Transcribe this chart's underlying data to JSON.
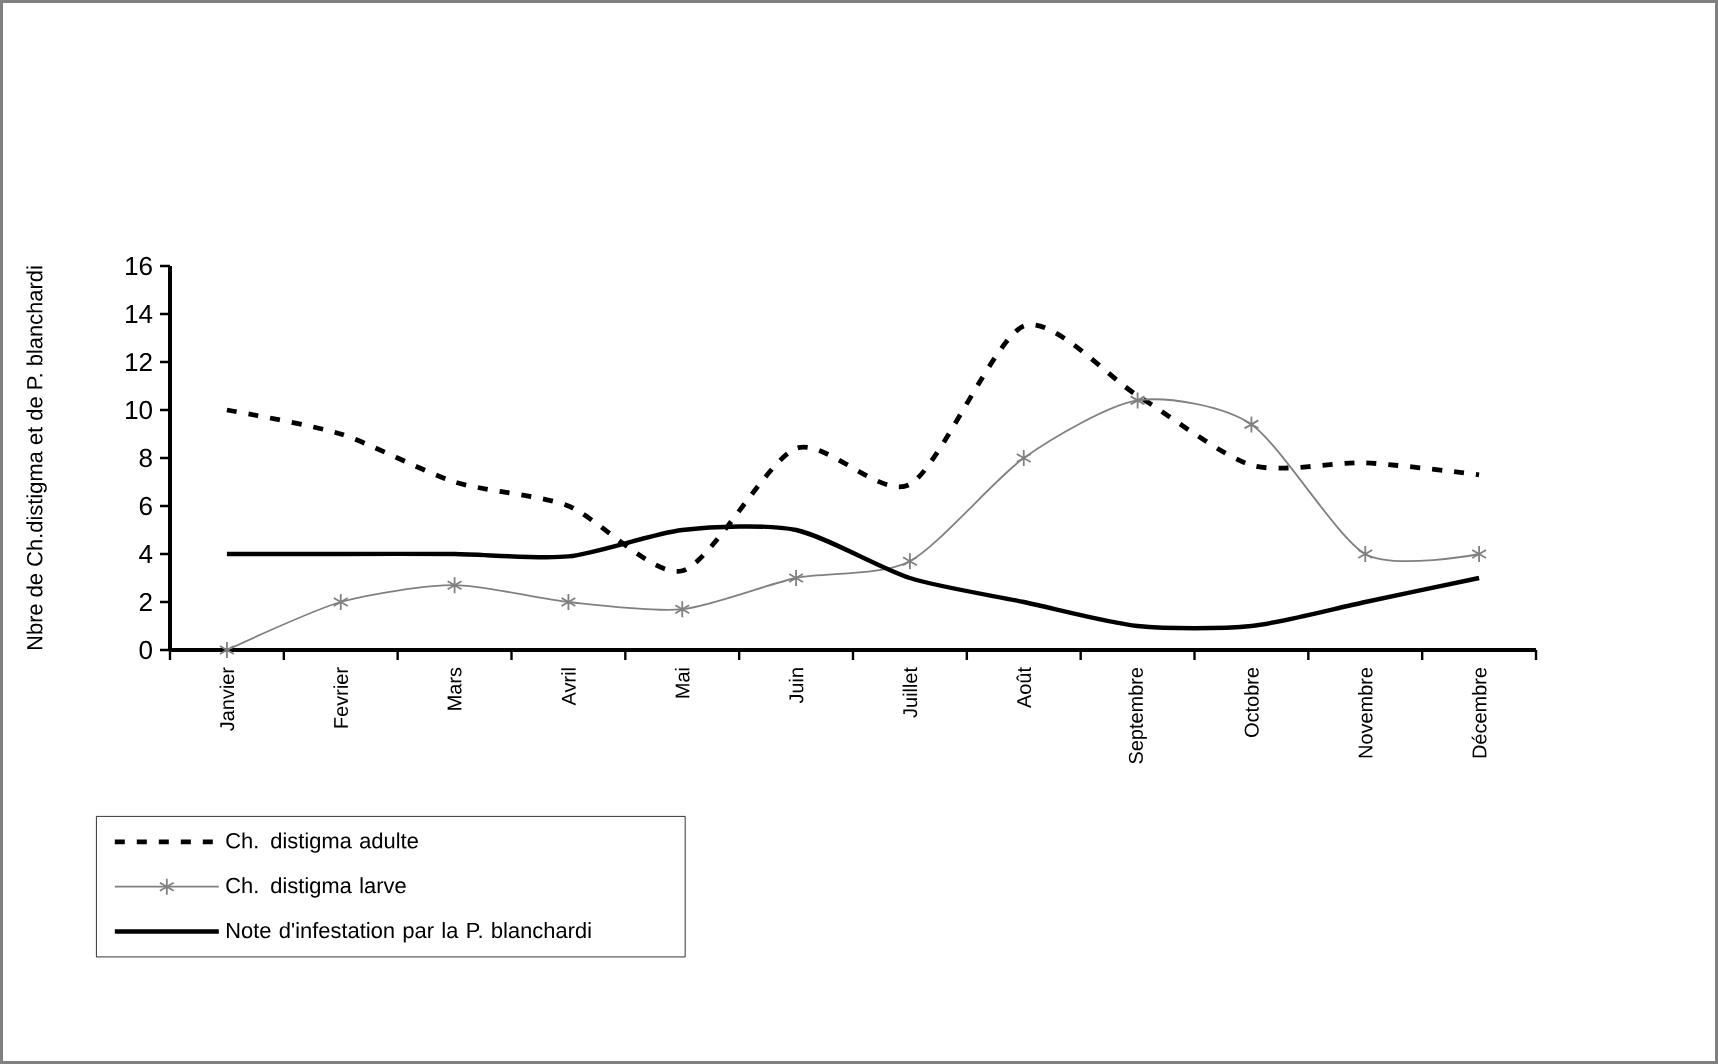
{
  "chart_data": {
    "type": "line",
    "ylabel": "Nbre de Ch.distigma et de P. blanchardi",
    "categories": [
      "Janvier",
      "Fevrier",
      "Mars",
      "Avril",
      "Mai",
      "Juin",
      "Juillet",
      "Août",
      "Septembre",
      "Octobre",
      "Novembre",
      "Décembre"
    ],
    "series": [
      {
        "name": "Ch. distigma adulte",
        "color": "#000000",
        "line_style": "dashed",
        "marker": "none",
        "values": [
          10,
          9,
          7,
          6,
          3.3,
          8.4,
          6.9,
          13.5,
          10.6,
          7.7,
          7.8,
          7.3
        ]
      },
      {
        "name": "Ch. distigma larve",
        "color": "#808080",
        "line_style": "solid",
        "marker": "cross",
        "values": [
          0,
          2,
          2.7,
          2,
          1.7,
          3,
          3.7,
          8,
          10.4,
          9.4,
          4,
          4
        ]
      },
      {
        "name": "Note d'infestation par la P. blanchardi",
        "color": "#000000",
        "line_style": "solid",
        "marker": "none",
        "values": [
          4,
          4,
          4,
          3.9,
          5,
          5,
          3,
          2,
          1,
          1,
          2,
          3
        ]
      }
    ],
    "ylim": [
      0,
      16
    ],
    "yticks": [
      0,
      2,
      4,
      6,
      8,
      10,
      12,
      14,
      16
    ],
    "grid": false,
    "legend": "bottom left"
  }
}
